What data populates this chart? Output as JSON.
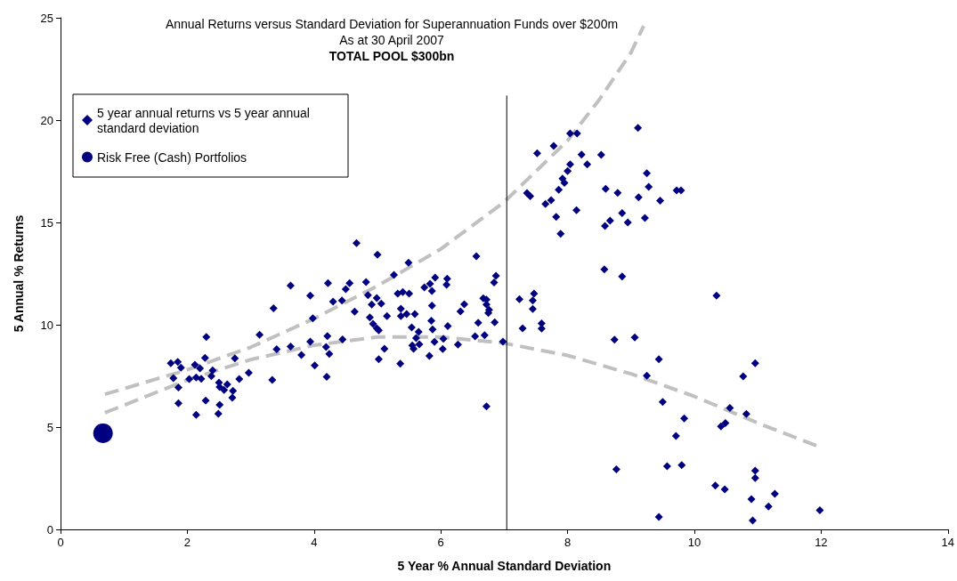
{
  "chart_data": {
    "type": "scatter",
    "title": "Annual Returns versus Standard Deviation for Superannuation Funds over $200m",
    "subtitle": "As at 30 April 2007",
    "annotations": [
      "TOTAL POOL $300bn"
    ],
    "xlabel": "5 Year % Annual Standard Deviation",
    "ylabel": "5 Annual % Returns",
    "xlim": [
      0,
      14
    ],
    "xticks": [
      0,
      2,
      4,
      6,
      8,
      10,
      12,
      14
    ],
    "ylim": [
      0,
      25
    ],
    "yticks": [
      0,
      5,
      10,
      15,
      20,
      25
    ],
    "grid": false,
    "legend": "top left",
    "series": [
      {
        "name": "5 year annual returns vs 5 year annual standard deviation",
        "marker": "diamond",
        "color": "#000080",
        "x": [
          3.63,
          3.36,
          2.3,
          3.14,
          3.41,
          3.63,
          3.8,
          1.74,
          1.85,
          1.9,
          2.12,
          2.28,
          2.2,
          2.4,
          2.75,
          2.97,
          2.82,
          3.34,
          1.78,
          2.03,
          2.14,
          2.22,
          2.38,
          2.5,
          2.51,
          2.63,
          2.58,
          2.72,
          2.71,
          1.86,
          1.86,
          2.29,
          2.51,
          2.14,
          2.49,
          4.67,
          5.0,
          5.49,
          6.56,
          4.22,
          4.56,
          4.5,
          4.82,
          5.26,
          3.94,
          4.3,
          4.44,
          4.85,
          4.99,
          4.91,
          5.06,
          4.64,
          5.32,
          5.4,
          5.5,
          5.74,
          5.83,
          5.91,
          5.86,
          6.1,
          6.09,
          6.87,
          6.84,
          3.98,
          4.88,
          4.93,
          4.99,
          5.02,
          5.15,
          5.37,
          5.37,
          5.46,
          5.59,
          5.86,
          6.37,
          6.31,
          5.85,
          5.87,
          6.11,
          5.54,
          5.65,
          5.61,
          6.59,
          6.67,
          6.72,
          6.72,
          6.76,
          6.75,
          6.85,
          6.54,
          6.69,
          6.98,
          3.94,
          4.21,
          4.19,
          4.24,
          4.45,
          4.01,
          4.2,
          5.11,
          5.02,
          5.36,
          5.55,
          5.57,
          5.66,
          5.9,
          6.04,
          6.03,
          6.27,
          5.82,
          6.72,
          9.11,
          8.04,
          8.15,
          7.78,
          7.52,
          8.22,
          8.53,
          8.04,
          8.31,
          8.0,
          7.92,
          7.95,
          9.25,
          7.86,
          9.28,
          7.36,
          7.41,
          8.6,
          8.79,
          9.12,
          9.72,
          9.79,
          9.46,
          7.65,
          7.74,
          8.14,
          7.82,
          8.86,
          8.95,
          9.22,
          8.59,
          8.67,
          7.89,
          8.58,
          8.86,
          7.47,
          7.24,
          7.45,
          7.45,
          7.29,
          7.59,
          7.59,
          10.35,
          9.06,
          9.44,
          10.96,
          9.25,
          10.77,
          9.5,
          10.56,
          10.82,
          9.84,
          10.42,
          10.49,
          9.71,
          8.77,
          9.57,
          9.8,
          10.96,
          10.96,
          10.33,
          10.48,
          11.27,
          10.9,
          11.17,
          11.98,
          9.44,
          10.92,
          8.74
        ],
        "values": [
          11.91,
          10.8,
          9.4,
          9.51,
          8.8,
          8.94,
          8.52,
          8.12,
          8.19,
          7.9,
          8.04,
          8.38,
          7.87,
          7.77,
          8.36,
          7.65,
          7.35,
          7.3,
          7.39,
          7.35,
          7.42,
          7.36,
          7.49,
          7.17,
          6.96,
          7.09,
          6.81,
          6.77,
          6.43,
          6.93,
          6.16,
          6.29,
          6.09,
          5.6,
          5.65,
          13.99,
          13.42,
          13.03,
          13.35,
          12.03,
          12.03,
          11.74,
          12.09,
          12.43,
          11.42,
          11.13,
          11.19,
          11.45,
          11.3,
          10.99,
          11.03,
          10.64,
          11.52,
          11.6,
          11.52,
          11.83,
          12.0,
          12.3,
          11.65,
          12.25,
          11.96,
          12.39,
          12.07,
          10.32,
          10.36,
          10.04,
          9.83,
          9.73,
          10.42,
          10.78,
          10.42,
          10.52,
          10.52,
          10.93,
          11.0,
          10.65,
          10.2,
          9.77,
          9.94,
          9.87,
          9.65,
          9.35,
          10.1,
          11.29,
          11.23,
          10.99,
          10.73,
          10.58,
          10.12,
          9.43,
          9.49,
          9.17,
          9.17,
          9.45,
          8.91,
          8.58,
          9.28,
          8.01,
          7.46,
          8.83,
          8.32,
          8.1,
          8.99,
          8.83,
          9.04,
          9.16,
          9.32,
          8.81,
          9.03,
          8.48,
          6.01,
          19.62,
          19.35,
          19.35,
          18.74,
          18.38,
          18.32,
          18.3,
          17.84,
          17.84,
          17.51,
          17.14,
          16.94,
          17.4,
          16.6,
          16.74,
          16.43,
          16.28,
          16.64,
          16.45,
          16.23,
          16.57,
          16.57,
          16.06,
          15.9,
          16.09,
          15.6,
          15.27,
          15.46,
          15.0,
          15.22,
          14.83,
          15.09,
          14.45,
          12.71,
          12.36,
          11.52,
          11.25,
          11.19,
          10.77,
          9.83,
          10.07,
          9.81,
          11.42,
          9.38,
          8.32,
          8.12,
          7.51,
          7.48,
          6.23,
          5.94,
          5.64,
          5.42,
          5.03,
          5.2,
          4.57,
          2.94,
          3.09,
          3.14,
          2.87,
          2.51,
          2.14,
          1.96,
          1.74,
          1.48,
          1.12,
          0.94,
          0.61,
          0.43,
          9.27
        ]
      },
      {
        "name": "Risk Free (Cash) Portfolios",
        "marker": "circle",
        "color": "#000080",
        "x": [
          0.67
        ],
        "values": [
          4.7
        ]
      },
      {
        "type": "line",
        "marker": "none",
        "line_style": "dashed",
        "color": "#c0c0c0",
        "x": [
          0.7,
          2,
          3,
          4,
          5,
          6,
          7,
          8,
          8.5,
          9,
          9.2
        ],
        "values": [
          6.6,
          7.8,
          8.9,
          10.3,
          11.9,
          13.7,
          16,
          19,
          21,
          23.3,
          24.6
        ]
      },
      {
        "type": "line",
        "marker": "none",
        "line_style": "dashed",
        "color": "#c0c0c0",
        "x": [
          0.7,
          2,
          3,
          4,
          5,
          6,
          7,
          8,
          9,
          10,
          11,
          12
        ],
        "values": [
          5.7,
          7.3,
          8.3,
          9.0,
          9.4,
          9.4,
          9.1,
          8.5,
          7.6,
          6.5,
          5.2,
          4.0
        ]
      },
      {
        "type": "line",
        "marker": "none",
        "line_style": "solid",
        "color": "#000000",
        "x": [
          7.04,
          7.04
        ],
        "values": [
          0,
          21.2
        ]
      }
    ]
  }
}
